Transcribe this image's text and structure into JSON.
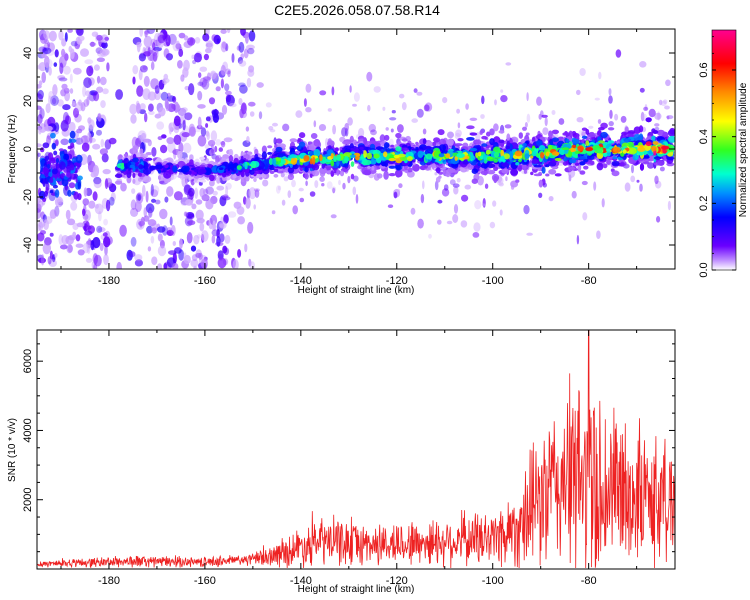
{
  "title": "C2E5.2026.058.07.58.R14",
  "chart_data": [
    {
      "type": "heatmap",
      "name": "spectrogram",
      "xlabel": "Height of straight line (km)",
      "ylabel": "Frequency (Hz)",
      "xlim": [
        -195,
        -62
      ],
      "ylim": [
        -50,
        50
      ],
      "xticks": [
        -180,
        -160,
        -140,
        -120,
        -100,
        -80
      ],
      "yticks": [
        -40,
        -20,
        0,
        20,
        40
      ],
      "colorbar": {
        "label": "Normalized spectral amplitude",
        "range": [
          0,
          0.72
        ],
        "ticks": [
          0.0,
          0.2,
          0.4,
          0.6
        ],
        "tick_labels": [
          "0.0",
          "0.2",
          "0.4",
          "0.6"
        ],
        "colors": [
          "#ffffff",
          "#b070ff",
          "#5a00ff",
          "#0000ff",
          "#00b0ff",
          "#00ffb0",
          "#40ff00",
          "#ffff00",
          "#ff8000",
          "#ff0000",
          "#ff0090"
        ]
      },
      "band": {
        "description_points_x": [
          -178,
          -160,
          -150,
          -140,
          -120,
          -100,
          -80,
          -63
        ],
        "center_freq_hz": [
          -7,
          -9,
          -7,
          -4,
          -3,
          -3,
          0,
          0
        ],
        "half_width_hz": [
          4,
          3,
          4,
          5,
          5,
          6,
          6,
          5
        ],
        "peak_amplitude": [
          0.3,
          0.15,
          0.35,
          0.5,
          0.45,
          0.45,
          0.55,
          0.7
        ]
      },
      "noise_region_x": [
        -195,
        -150
      ]
    },
    {
      "type": "line",
      "name": "snr",
      "xlabel": "Height of straight line (km)",
      "ylabel": "SNR (10 * v/v)",
      "xlim": [
        -195,
        -62
      ],
      "ylim": [
        0,
        6900
      ],
      "xticks": [
        -180,
        -160,
        -140,
        -120,
        -100,
        -80
      ],
      "yticks": [
        2000,
        4000,
        6000
      ],
      "color": "#ee2222",
      "envelope": {
        "x": [
          -195,
          -175,
          -160,
          -150,
          -145,
          -140,
          -135,
          -125,
          -110,
          -100,
          -95,
          -90,
          -85,
          -80,
          -75,
          -70,
          -65,
          -62
        ],
        "mean": [
          150,
          220,
          200,
          280,
          400,
          650,
          800,
          700,
          800,
          900,
          1200,
          2000,
          2600,
          2500,
          2300,
          2100,
          2000,
          1900
        ],
        "spread": [
          80,
          150,
          120,
          150,
          300,
          500,
          600,
          500,
          600,
          700,
          1000,
          1700,
          2200,
          2700,
          2000,
          1700,
          1600,
          1500
        ]
      },
      "peak": {
        "x": -80,
        "y": 6900
      }
    }
  ]
}
